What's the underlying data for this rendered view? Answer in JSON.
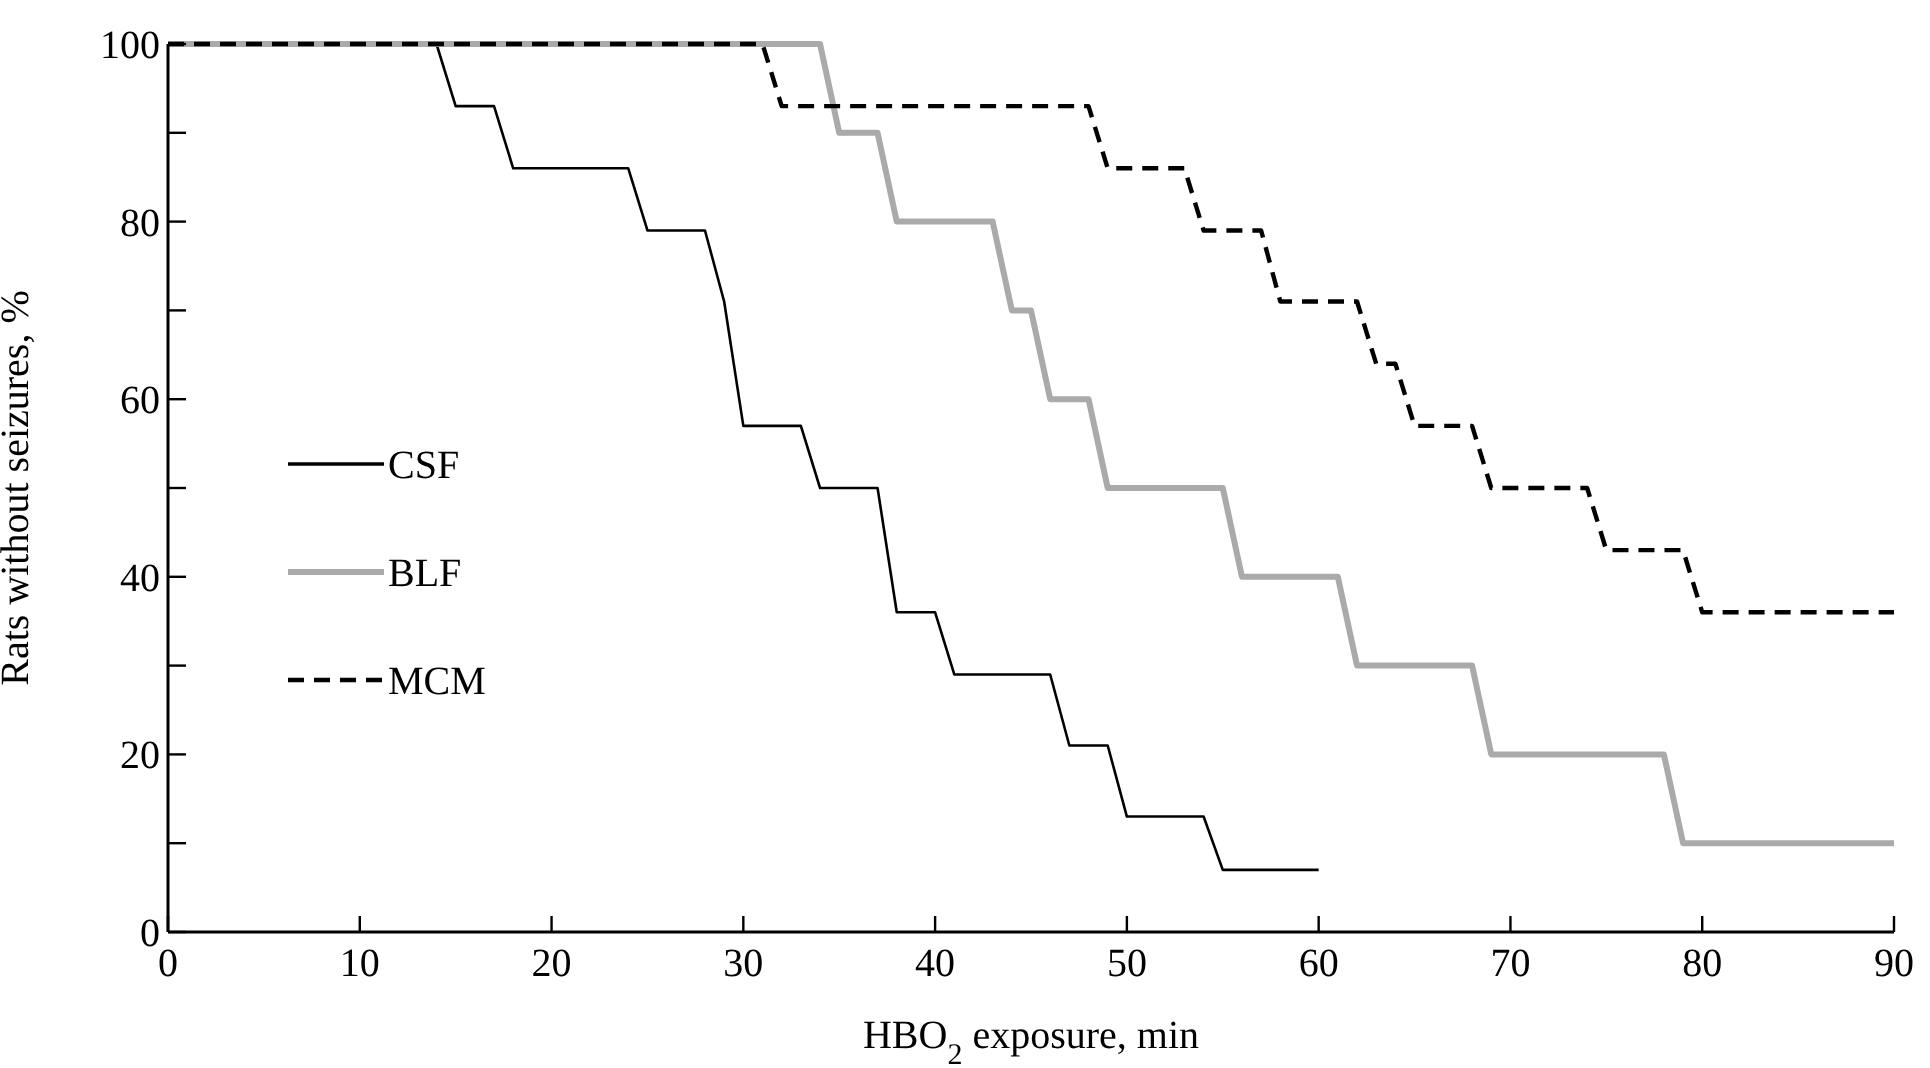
{
  "chart_data": {
    "type": "line",
    "xlabel": "HBO$_{2}$ exposure, min",
    "ylabel": "Rats without seizures, %",
    "xlim": [
      0,
      90
    ],
    "ylim": [
      0,
      100
    ],
    "xticks": [
      0,
      10,
      20,
      30,
      40,
      50,
      60,
      70,
      80,
      90
    ],
    "yticks": [
      0,
      {
        "value": 10,
        "label": null
      },
      20,
      {
        "value": 30,
        "label": null
      },
      40,
      {
        "value": 50,
        "label": null
      },
      60,
      {
        "value": 70,
        "label": null
      },
      80,
      {
        "value": 90,
        "label": null
      },
      100
    ],
    "grid": false,
    "legend": "left",
    "series": [
      {
        "name": "CSF",
        "color": "#000000",
        "line_style": "solid",
        "x": [
          0,
          14,
          15,
          17,
          18,
          24,
          25,
          28,
          29,
          30,
          33,
          34,
          37,
          38,
          40,
          41,
          46,
          47,
          49,
          50,
          54,
          55,
          60
        ],
        "values": [
          100,
          100,
          93,
          93,
          86,
          86,
          79,
          79,
          71,
          57,
          57,
          50,
          50,
          36,
          36,
          29,
          29,
          21,
          21,
          13,
          13,
          7,
          7
        ]
      },
      {
        "name": "BLF",
        "color": "#aaaaaa",
        "line_style": "solid",
        "x": [
          0,
          34,
          35,
          37,
          38,
          43,
          44,
          45,
          46,
          48,
          49,
          55,
          56,
          61,
          62,
          68,
          69,
          78,
          79,
          90
        ],
        "values": [
          100,
          100,
          90,
          90,
          80,
          80,
          70,
          70,
          60,
          60,
          50,
          50,
          40,
          40,
          30,
          30,
          20,
          20,
          10,
          10
        ]
      },
      {
        "name": "MCM",
        "color": "#000000",
        "line_style": "dashed",
        "x": [
          0,
          31,
          32,
          48,
          49,
          53,
          54,
          57,
          58,
          62,
          63,
          64,
          65,
          68,
          69,
          74,
          75,
          79,
          80,
          90
        ],
        "values": [
          100,
          100,
          93,
          93,
          86,
          86,
          79,
          79,
          71,
          71,
          64,
          64,
          57,
          57,
          50,
          50,
          43,
          43,
          36,
          36
        ]
      }
    ]
  }
}
